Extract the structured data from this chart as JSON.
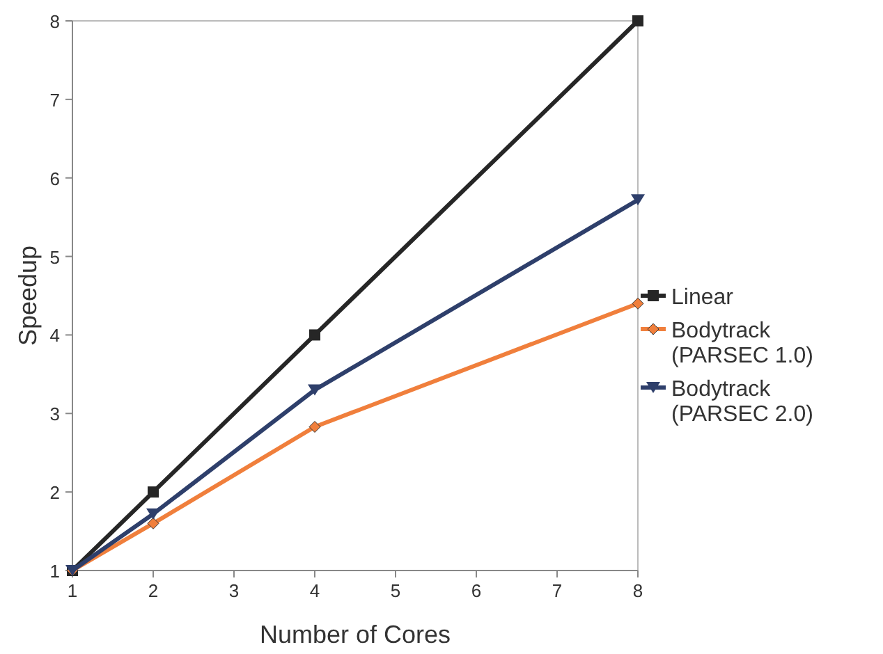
{
  "chart_data": {
    "type": "line",
    "xlabel": "Number of Cores",
    "ylabel": "Speedup",
    "x": [
      1,
      2,
      4,
      8
    ],
    "series": [
      {
        "name": "Linear",
        "color": "#262626",
        "values": [
          1,
          2,
          4,
          8
        ],
        "marker": "square"
      },
      {
        "name": "Bodytrack\n(PARSEC 1.0)",
        "color": "#f07f3c",
        "values": [
          1,
          1.6,
          2.83,
          4.4
        ],
        "marker": "diamond"
      },
      {
        "name": "Bodytrack\n(PARSEC 2.0)",
        "color": "#2e3f6b",
        "values": [
          1,
          1.72,
          3.3,
          5.72
        ],
        "marker": "triangle"
      }
    ],
    "xlim": [
      1,
      8
    ],
    "xticks": [
      1,
      2,
      3,
      4,
      5,
      6,
      7,
      8
    ],
    "ylim": [
      1,
      8
    ],
    "yticks": [
      1,
      2,
      3,
      4,
      5,
      6,
      7,
      8
    ],
    "grid": false,
    "legend": "right"
  }
}
